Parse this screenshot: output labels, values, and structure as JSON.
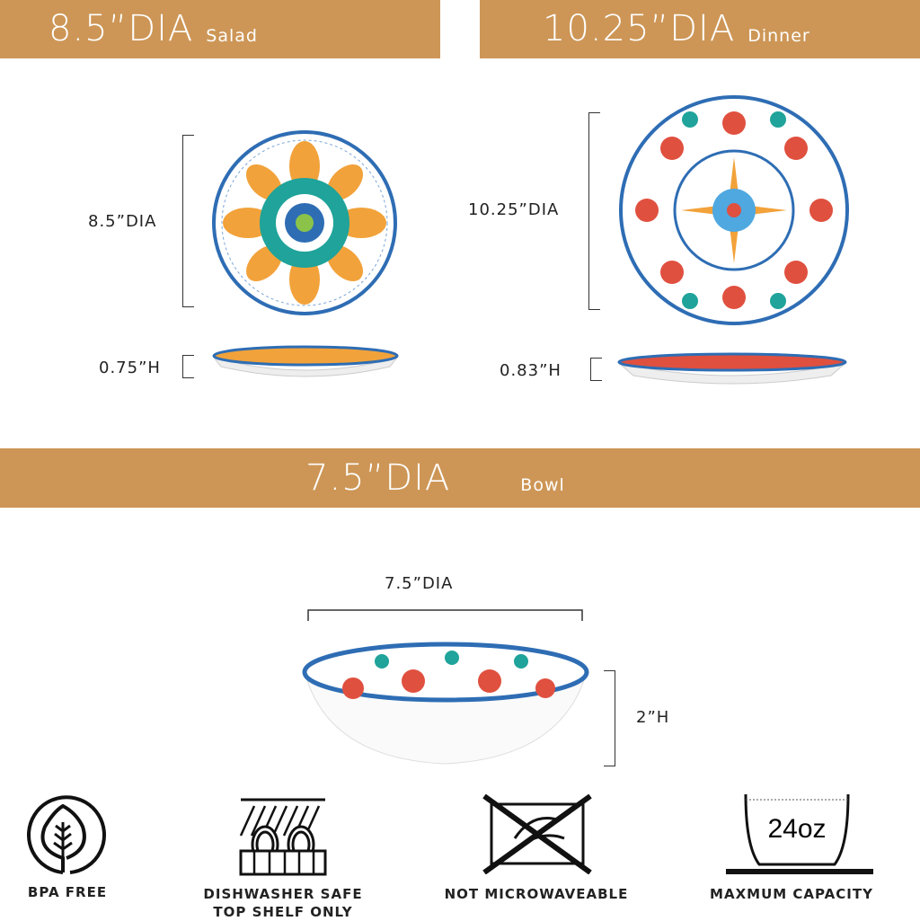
{
  "banners": [
    {
      "size": "8.5”DIA",
      "type": "Salad"
    },
    {
      "size": "10.25”DIA",
      "type": "Dinner"
    },
    {
      "size": "7.5”DIA",
      "type": "Bowl"
    }
  ],
  "salad": {
    "diameter": "8.5”DIA",
    "height": "0.75”H"
  },
  "dinner": {
    "diameter": "10.25”DIA",
    "height": "0.83”H"
  },
  "bowl": {
    "diameter": "7.5”DIA",
    "height": "2”H"
  },
  "features": [
    {
      "icon": "leaf-icon",
      "label": "BPA FREE",
      "label2": ""
    },
    {
      "icon": "dishwasher-icon",
      "label": "DISHWASHER SAFE",
      "label2": "TOP SHELF ONLY"
    },
    {
      "icon": "no-microwave-icon",
      "label": "NOT MICROWAVEABLE",
      "label2": ""
    },
    {
      "icon": "bowl-capacity-icon",
      "label": "MAXMUM CAPACITY",
      "label2": "",
      "capacity": "24oz"
    }
  ],
  "colors": {
    "banner": "#CD9656",
    "rim": "#2E6DB4",
    "accent_orange": "#F2A23A",
    "accent_teal": "#1FA39A",
    "accent_red": "#E0503F"
  }
}
